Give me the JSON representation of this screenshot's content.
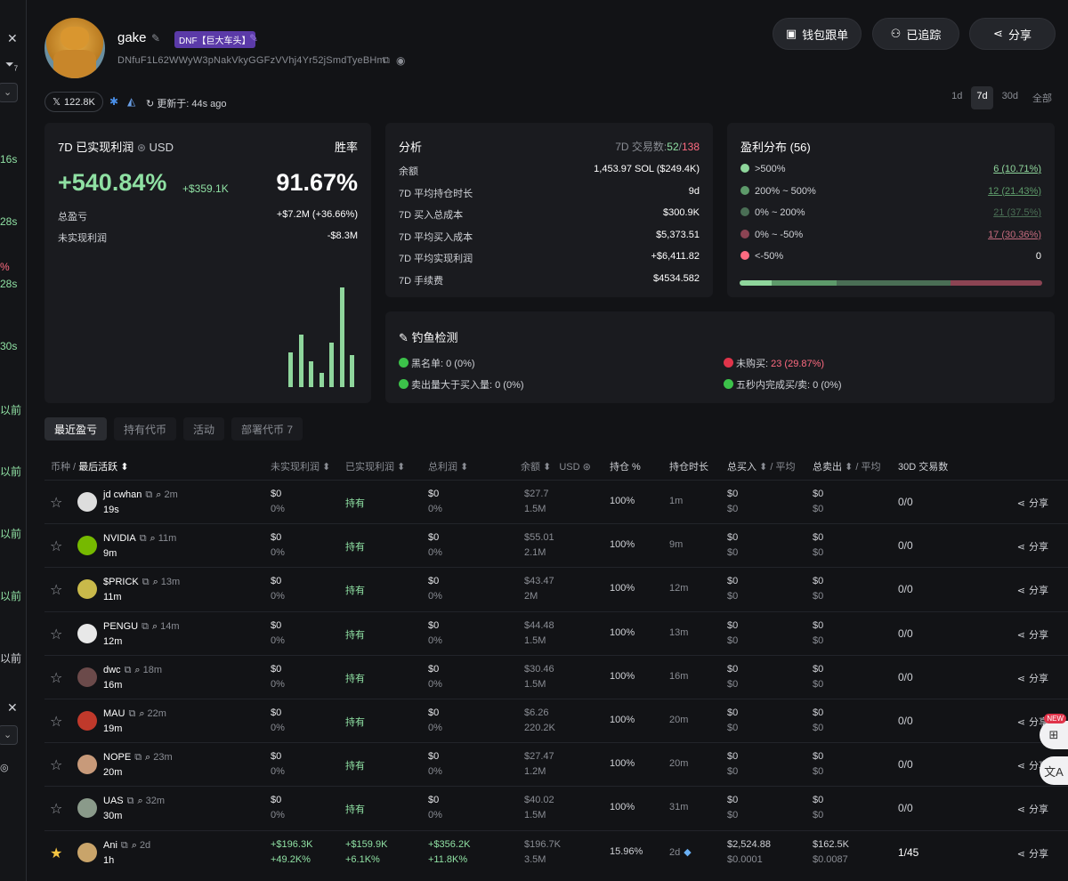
{
  "left_strip": {
    "items": [
      {
        "text": "16s",
        "color": "green"
      },
      {
        "text": "28s",
        "color": "green"
      },
      {
        "text": "%",
        "color": "red"
      },
      {
        "text": "28s",
        "color": "green"
      },
      {
        "text": "30s",
        "color": "green"
      },
      {
        "text": "以前",
        "color": "green"
      },
      {
        "text": "以前",
        "color": "green"
      },
      {
        "text": "以前",
        "color": "green"
      },
      {
        "text": "以前",
        "color": "green"
      },
      {
        "text": "以前",
        "color": "white"
      }
    ],
    "badge_count": "7"
  },
  "profile": {
    "name": "gake",
    "tag": "DNF【巨大车头】",
    "address": "DNfuF1L62WWyW3pNakVkyGGFzVVhj4Yr52jSmdTyeBHm",
    "x_followers": "122.8K",
    "updated": "更新于: 44s ago"
  },
  "buttons": {
    "wallet_follow": "钱包跟单",
    "tracked": "已追踪",
    "share": "分享"
  },
  "timeframes": [
    "1d",
    "7d",
    "30d",
    "全部"
  ],
  "active_timeframe": "7d",
  "pnl": {
    "title": "7D 已实现利润",
    "currency": "USD",
    "winrate_label": "胜率",
    "pct": "+540.84%",
    "usd": "+$359.1K",
    "winrate": "91.67%",
    "total_label": "总盈亏",
    "total_value": "+$7.2M (+36.66%)",
    "unrealized_label": "未实现利润",
    "unrealized_value": "-$8.3M",
    "bars": [
      0.35,
      0.53,
      0.26,
      0.14,
      0.45,
      1.0,
      0.32
    ]
  },
  "analysis": {
    "title": "分析",
    "trades_label": "7D 交易数:",
    "trades_win": "52",
    "trades_sep": "/",
    "trades_total": "138",
    "rows": [
      {
        "label": "余额",
        "value": "1,453.97 SOL ($249.4K)",
        "color": "white"
      },
      {
        "label": "7D 平均持仓时长",
        "value": "9d",
        "color": "white"
      },
      {
        "label": "7D 买入总成本",
        "value": "$300.9K",
        "color": "white"
      },
      {
        "label": "7D 平均买入成本",
        "value": "$5,373.51",
        "color": "white"
      },
      {
        "label": "7D 平均实现利润",
        "value": "+$6,411.82",
        "color": "green"
      },
      {
        "label": "7D 手续费",
        "value": "$4534.582",
        "color": "white"
      }
    ]
  },
  "distribution": {
    "title": "盈利分布 (56)",
    "rows": [
      {
        "label": ">500%",
        "value": "6 (10.71%)",
        "color": "#8fd69c"
      },
      {
        "label": "200% ~ 500%",
        "value": "12 (21.43%)",
        "color": "#5d9a6a"
      },
      {
        "label": "0% ~ 200%",
        "value": "21 (37.5%)",
        "color": "#4a6e55"
      },
      {
        "label": "0% ~ -50%",
        "value": "17 (30.36%)",
        "color": "#8c4453"
      },
      {
        "label": "<-50%",
        "value": "0",
        "color": "#ff6b81"
      }
    ],
    "fractions": [
      0.107,
      0.214,
      0.375,
      0.304
    ]
  },
  "phishing": {
    "title": "钓鱼检测",
    "items": [
      {
        "text": "黑名单: 0 (0%)",
        "status": "green"
      },
      {
        "text": "未购买: ",
        "value": "23 (29.87%)",
        "status": "red"
      },
      {
        "text": "卖出量大于买入量: 0 (0%)",
        "status": "green"
      },
      {
        "text": "五秒内完成买/卖: 0 (0%)",
        "status": "green"
      }
    ]
  },
  "tabs": [
    "最近盈亏",
    "持有代币",
    "活动",
    "部署代币 7"
  ],
  "active_tab": "最近盈亏",
  "table": {
    "headers": {
      "token": "币种 /",
      "last_active": "最后活跃",
      "unrealized": "未实现利润",
      "realized": "已实现利润",
      "total": "总利润",
      "balance": "余额",
      "balance_unit": "USD",
      "position": "持仓 %",
      "hold": "持仓时长",
      "buy": "总买入",
      "buy_avg": "/ 平均",
      "sell": "总卖出",
      "sell_avg": "/ 平均",
      "trades": "30D 交易数"
    },
    "rows": [
      {
        "name": "jd cwhan",
        "age": "2m",
        "time": "19s",
        "unreal": "$0",
        "unreal_pct": "0%",
        "realized": "持有",
        "total": "$0",
        "total_pct": "0%",
        "bal": "$27.7",
        "bal_amt": "1.5M",
        "pos": "100%",
        "hold": "1m",
        "buy": "$0",
        "buy_avg": "$0",
        "sell": "$0",
        "sell_avg": "$0",
        "trades": "0/0",
        "share": "分享",
        "starred": false,
        "avatar": "#dddddd"
      },
      {
        "name": "NVIDIA",
        "age": "11m",
        "time": "9m",
        "unreal": "$0",
        "unreal_pct": "0%",
        "realized": "持有",
        "total": "$0",
        "total_pct": "0%",
        "bal": "$55.01",
        "bal_amt": "2.1M",
        "pos": "100%",
        "hold": "9m",
        "buy": "$0",
        "buy_avg": "$0",
        "sell": "$0",
        "sell_avg": "$0",
        "trades": "0/0",
        "share": "分享",
        "starred": false,
        "avatar": "#76b900"
      },
      {
        "name": "$PRICK",
        "age": "13m",
        "time": "11m",
        "unreal": "$0",
        "unreal_pct": "0%",
        "realized": "持有",
        "total": "$0",
        "total_pct": "0%",
        "bal": "$43.47",
        "bal_amt": "2M",
        "pos": "100%",
        "hold": "12m",
        "buy": "$0",
        "buy_avg": "$0",
        "sell": "$0",
        "sell_avg": "$0",
        "trades": "0/0",
        "share": "分享",
        "starred": false,
        "avatar": "#c9b94a"
      },
      {
        "name": "PENGU",
        "age": "14m",
        "time": "12m",
        "unreal": "$0",
        "unreal_pct": "0%",
        "realized": "持有",
        "total": "$0",
        "total_pct": "0%",
        "bal": "$44.48",
        "bal_amt": "1.5M",
        "pos": "100%",
        "hold": "13m",
        "buy": "$0",
        "buy_avg": "$0",
        "sell": "$0",
        "sell_avg": "$0",
        "trades": "0/0",
        "share": "分享",
        "starred": false,
        "avatar": "#e8e8e8"
      },
      {
        "name": "dwc",
        "age": "18m",
        "time": "16m",
        "unreal": "$0",
        "unreal_pct": "0%",
        "realized": "持有",
        "total": "$0",
        "total_pct": "0%",
        "bal": "$30.46",
        "bal_amt": "1.5M",
        "pos": "100%",
        "hold": "16m",
        "buy": "$0",
        "buy_avg": "$0",
        "sell": "$0",
        "sell_avg": "$0",
        "trades": "0/0",
        "share": "分享",
        "starred": false,
        "avatar": "#6b4a4a"
      },
      {
        "name": "MAU",
        "age": "22m",
        "time": "19m",
        "unreal": "$0",
        "unreal_pct": "0%",
        "realized": "持有",
        "total": "$0",
        "total_pct": "0%",
        "bal": "$6.26",
        "bal_amt": "220.2K",
        "pos": "100%",
        "hold": "20m",
        "buy": "$0",
        "buy_avg": "$0",
        "sell": "$0",
        "sell_avg": "$0",
        "trades": "0/0",
        "share": "分享",
        "starred": false,
        "avatar": "#c0392b"
      },
      {
        "name": "NOPE",
        "age": "23m",
        "time": "20m",
        "unreal": "$0",
        "unreal_pct": "0%",
        "realized": "持有",
        "total": "$0",
        "total_pct": "0%",
        "bal": "$27.47",
        "bal_amt": "1.2M",
        "pos": "100%",
        "hold": "20m",
        "buy": "$0",
        "buy_avg": "$0",
        "sell": "$0",
        "sell_avg": "$0",
        "trades": "0/0",
        "share": "分享",
        "starred": false,
        "avatar": "#c89a7a"
      },
      {
        "name": "UAS",
        "age": "32m",
        "time": "30m",
        "unreal": "$0",
        "unreal_pct": "0%",
        "realized": "持有",
        "total": "$0",
        "total_pct": "0%",
        "bal": "$40.02",
        "bal_amt": "1.5M",
        "pos": "100%",
        "hold": "31m",
        "buy": "$0",
        "buy_avg": "$0",
        "sell": "$0",
        "sell_avg": "$0",
        "trades": "0/0",
        "share": "分享",
        "starred": false,
        "avatar": "#8a9a8a"
      },
      {
        "name": "Ani",
        "age": "2d",
        "time": "1h",
        "unreal": "+$196.3K",
        "unreal_pct": "+49.2K%",
        "realized": "+$159.9K",
        "realized_pct": "+6.1K%",
        "total": "+$356.2K",
        "total_pct": "+11.8K%",
        "bal": "$196.7K",
        "bal_amt": "3.5M",
        "pos": "15.96%",
        "hold": "2d",
        "buy": "$2,524.88",
        "buy_avg": "$0.0001",
        "sell": "$162.5K",
        "sell_avg": "$0.0087",
        "trades": "1/45",
        "share": "分享",
        "starred": true,
        "avatar": "#c9a46a"
      }
    ]
  },
  "floating": {
    "new_badge": "NEW"
  }
}
